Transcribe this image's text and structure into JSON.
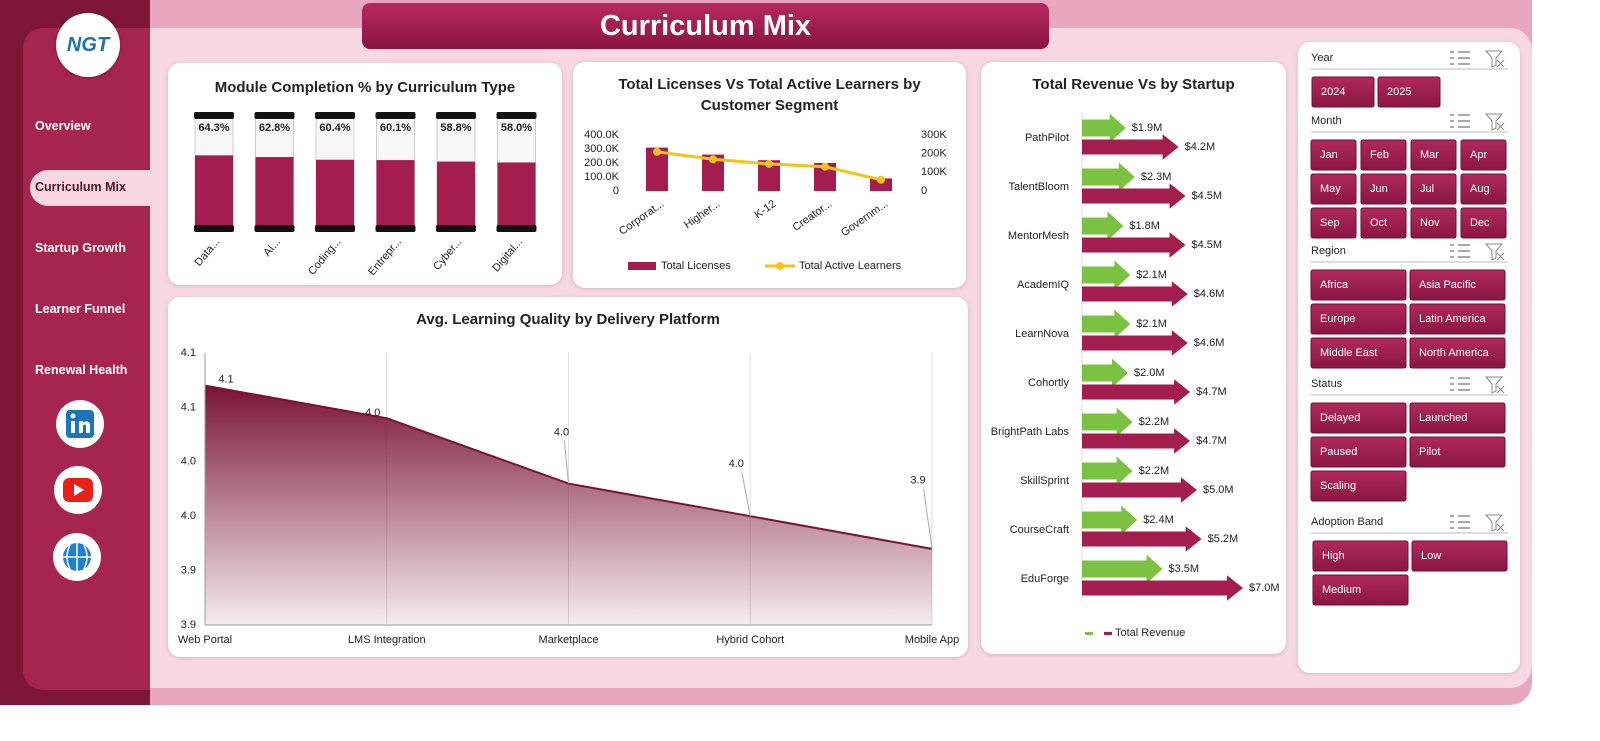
{
  "header": {
    "logo": "NGT",
    "title": "Curriculum Mix"
  },
  "nav": {
    "items": [
      "Overview",
      "Curriculum Mix",
      "Startup Growth",
      "Learner Funnel",
      "Renewal Health"
    ],
    "active": 1
  },
  "chart_data": [
    {
      "type": "bar",
      "title": "Module Completion % by Curriculum Type",
      "categories": [
        "Data...",
        "AI...",
        "Coding...",
        "Entrepr...",
        "Cyber...",
        "Digital..."
      ],
      "values": [
        64.3,
        62.8,
        60.4,
        60.1,
        58.8,
        58.0
      ],
      "value_labels": [
        "64.3%",
        "62.8%",
        "60.4%",
        "60.1%",
        "58.8%",
        "58.0%"
      ],
      "color": "#a31d4f",
      "ylim": [
        0,
        100
      ]
    },
    {
      "type": "combo",
      "title": "Total Licenses Vs Total Active Learners by Customer Segment",
      "categories": [
        "Corporat...",
        "Higher...",
        "K-12",
        "Creator...",
        "Governm..."
      ],
      "series": [
        {
          "name": "Total Licenses",
          "color": "#a31d4f",
          "values": [
            310000,
            260000,
            220000,
            200000,
            90000
          ]
        },
        {
          "name": "Total Active Learners",
          "color": "#f5c21b",
          "axis": "y2",
          "values": [
            210000,
            170000,
            145000,
            130000,
            60000
          ]
        }
      ],
      "ylim": [
        0,
        400000
      ],
      "yticks": [
        0,
        {
          "value": 100000,
          "label": "100.0K"
        },
        {
          "value": 200000,
          "label": "200.0K"
        },
        {
          "value": 300000,
          "label": "300.0K"
        },
        {
          "value": 400000,
          "label": "400.0K"
        }
      ],
      "y2lim": [
        0,
        300000
      ],
      "y2ticks": [
        0,
        {
          "value": 100000,
          "label": "100K"
        },
        {
          "value": 200000,
          "label": "200K"
        },
        {
          "value": 300000,
          "label": "300K"
        }
      ],
      "legend": "bottom"
    },
    {
      "type": "hbar",
      "title": "Total Revenue Vs  by Startup",
      "categories": [
        "PathPilot",
        "TalentBloom",
        "MentorMesh",
        "AcademIQ",
        "LearnNova",
        "Cohortly",
        "BrightPath Labs",
        "SkillSprint",
        "CourseCraft",
        "EduForge"
      ],
      "series": [
        {
          "color": "#7cc242",
          "values": [
            1.9,
            2.3,
            1.8,
            2.1,
            2.1,
            2.0,
            2.2,
            2.2,
            2.4,
            3.5
          ],
          "value_labels": [
            "$1.9M",
            "$2.3M",
            "$1.8M",
            "$2.1M",
            "$2.1M",
            "$2.0M",
            "$2.2M",
            "$2.2M",
            "$2.4M",
            "$3.5M"
          ]
        },
        {
          "name": "Total Revenue",
          "color": "#a31d4f",
          "values": [
            4.2,
            4.5,
            4.5,
            4.6,
            4.6,
            4.7,
            4.7,
            5.0,
            5.2,
            7.0
          ],
          "value_labels": [
            "$4.2M",
            "$4.5M",
            "$4.5M",
            "$4.6M",
            "$4.6M",
            "$4.7M",
            "$4.7M",
            "$5.0M",
            "$5.2M",
            "$7.0M"
          ]
        }
      ],
      "legend": "bottom"
    },
    {
      "type": "area",
      "title": "Avg. Learning Quality by Delivery Platform",
      "categories": [
        "Web Portal",
        "LMS Integration",
        "Marketplace",
        "Hybrid Cohort",
        "Mobile App"
      ],
      "values": [
        4.07,
        4.04,
        3.98,
        3.95,
        3.92
      ],
      "value_labels": [
        "4.1",
        "4.0",
        "4.0",
        "4.0",
        "3.9"
      ],
      "color": "#7a1436",
      "ylim": [
        3.85,
        4.1
      ],
      "yticks": [
        {
          "value": 3.85,
          "label": "3.9"
        },
        3.9,
        {
          "value": 3.95,
          "label": "4.0"
        },
        {
          "value": 4,
          "label": "4.0"
        },
        {
          "value": 4.05,
          "label": "4.1"
        },
        4.1
      ],
      "grid": true
    }
  ],
  "slicers": [
    {
      "title": "Year",
      "items": [
        "2024",
        "2025"
      ]
    },
    {
      "title": "Month",
      "items": [
        "Jan",
        "Feb",
        "Mar",
        "Apr",
        "May",
        "Jun",
        "Jul",
        "Aug",
        "Sep",
        "Oct",
        "Nov",
        "Dec"
      ]
    },
    {
      "title": "Region",
      "items": [
        "Africa",
        "Asia Pacific",
        "Europe",
        "Latin America",
        "Middle East",
        "North America"
      ]
    },
    {
      "title": "Status",
      "items": [
        "Delayed",
        "Launched",
        "Paused",
        "Pilot",
        "Scaling"
      ]
    },
    {
      "title": "Adoption Band",
      "items": [
        "High",
        "Low",
        "Medium"
      ]
    }
  ]
}
